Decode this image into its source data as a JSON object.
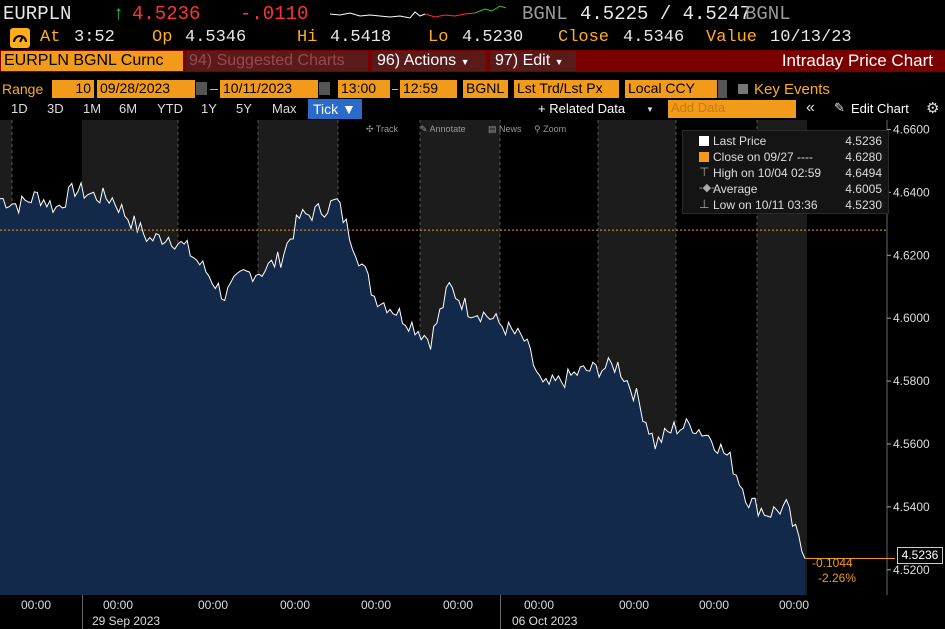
{
  "header": {
    "ticker": "EURPLN",
    "arrow": "↑",
    "price": "4.5236",
    "change": "-.0110",
    "source": "BGNL",
    "bid_ask": "4.5225 / 4.5247",
    "source2": "BGNL",
    "at_label": "At",
    "time": "3:52",
    "open_label": "Op",
    "open": "4.5346",
    "high_label": "Hi",
    "high": "4.5418",
    "low_label": "Lo",
    "low": "4.5230",
    "close_label": "Close",
    "close": "4.5346",
    "value_label": "Value",
    "value_date": "10/13/23"
  },
  "toolbar": {
    "security": "EURPLN BGNL Curnc",
    "suggested": "94) Suggested Charts",
    "actions": "96) Actions",
    "edit": "97) Edit",
    "title": "Intraday Price Chart"
  },
  "range_bar": {
    "range_label": "Range",
    "period": "10",
    "start_date": "09/28/2023",
    "end_date": "10/11/2023",
    "start_time": "13:00",
    "end_time": "12:59",
    "source": "BGNL",
    "field": "Lst Trd/Lst Px",
    "currency": "Local CCY",
    "key_events": "Key Events"
  },
  "period_tabs": [
    "1D",
    "3D",
    "1M",
    "6M",
    "YTD",
    "1Y",
    "5Y",
    "Max"
  ],
  "active_tab": "Tick ▼",
  "related_data": "+ Related Data",
  "add_data_placeholder": "Add Data",
  "edit_chart": "Edit Chart",
  "chart_tools": [
    "Track",
    "Annotate",
    "News",
    "Zoom"
  ],
  "legend": {
    "items": [
      {
        "label": "Last Price",
        "value": "4.5236",
        "color": "#ffffff"
      },
      {
        "label": "Close on 09/27 ----",
        "value": "4.6280",
        "color": "#f29a1a"
      },
      {
        "label": "High on 10/04 02:59",
        "value": "4.6494",
        "color": "#aaaaaa"
      },
      {
        "label": "Average",
        "value": "4.6005",
        "color": "#aaaaaa"
      },
      {
        "label": "Low on 10/11 03:36",
        "value": "4.5230",
        "color": "#aaaaaa"
      }
    ]
  },
  "price_tag": "4.5236",
  "change_abs": "-0.1044",
  "change_pct": "-2.26%",
  "colors": {
    "fill": "#13294a",
    "line": "#ffffff",
    "close_line": "#f29a1a",
    "down": "#ff3333",
    "up": "#22cc44"
  },
  "chart_data": {
    "type": "area",
    "title": "Intraday Price Chart",
    "y_axis_side": "right",
    "ylim": [
      4.512,
      4.663
    ],
    "yticks": [
      "4.6600",
      "4.6400",
      "4.6200",
      "4.6000",
      "4.5800",
      "4.5600",
      "4.5400",
      "4.5200"
    ],
    "ytick_values": [
      4.66,
      4.64,
      4.62,
      4.6,
      4.58,
      4.56,
      4.54,
      4.52
    ],
    "xticks": [
      "00:00",
      "00:00",
      "00:00",
      "00:00",
      "00:00",
      "00:00",
      "00:00",
      "00:00",
      "00:00",
      "00:00"
    ],
    "date_labels": [
      "29 Sep 2023",
      "06 Oct 2023"
    ],
    "reference_line": {
      "label": "Close on 09/27",
      "value": 4.628
    },
    "series": [
      {
        "name": "Last Price",
        "x": [
          "09/28 13:00",
          "09/28 18:00",
          "09/28 23:00",
          "09/29 04:00",
          "09/29 09:00",
          "09/29 14:00",
          "09/29 19:00",
          "10/02 00:00",
          "10/02 05:00",
          "10/02 10:00",
          "10/02 15:00",
          "10/02 20:00",
          "10/03 01:00",
          "10/03 06:00",
          "10/03 11:00",
          "10/03 16:00",
          "10/03 21:00",
          "10/04 02:59",
          "10/04 08:00",
          "10/04 13:00",
          "10/04 18:00",
          "10/04 23:00",
          "10/05 04:00",
          "10/05 09:00",
          "10/05 14:00",
          "10/05 19:00",
          "10/06 00:00",
          "10/06 05:00",
          "10/06 10:00",
          "10/06 15:00",
          "10/06 20:00",
          "10/09 01:00",
          "10/09 06:00",
          "10/09 11:00",
          "10/09 16:00",
          "10/09 21:00",
          "10/10 02:00",
          "10/10 07:00",
          "10/10 12:00",
          "10/10 17:00",
          "10/10 22:00",
          "10/11 03:36",
          "10/11 08:00",
          "10/11 12:59"
        ],
        "values": [
          4.638,
          4.636,
          4.639,
          4.635,
          4.641,
          4.639,
          4.638,
          4.631,
          4.625,
          4.626,
          4.622,
          4.615,
          4.607,
          4.614,
          4.615,
          4.619,
          4.632,
          4.634,
          4.637,
          4.622,
          4.607,
          4.603,
          4.598,
          4.593,
          4.61,
          4.603,
          4.601,
          4.597,
          4.593,
          4.578,
          4.58,
          4.583,
          4.584,
          4.585,
          4.575,
          4.56,
          4.565,
          4.566,
          4.562,
          4.555,
          4.542,
          4.538,
          4.54,
          4.5236
        ]
      }
    ]
  }
}
